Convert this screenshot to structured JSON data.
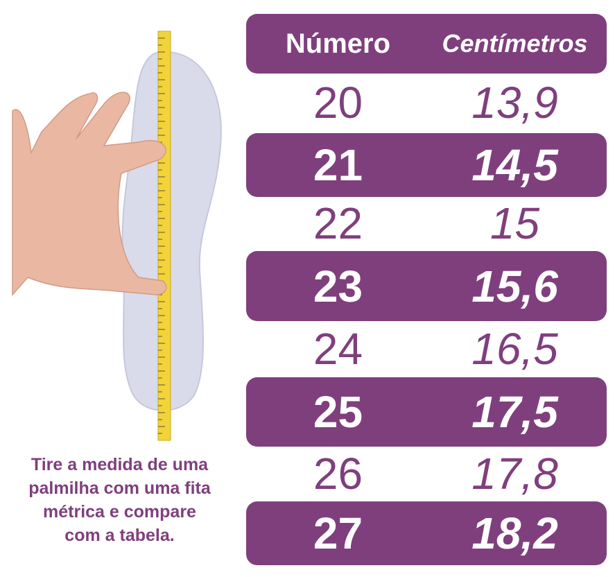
{
  "table": {
    "headers": [
      "Número",
      "Centímetros"
    ],
    "rows": [
      {
        "numero": "20",
        "cm": "13,9"
      },
      {
        "numero": "21",
        "cm": "14,5"
      },
      {
        "numero": "22",
        "cm": "15"
      },
      {
        "numero": "23",
        "cm": "15,6"
      },
      {
        "numero": "24",
        "cm": "16,5"
      },
      {
        "numero": "25",
        "cm": "17,5"
      },
      {
        "numero": "26",
        "cm": "17,8"
      },
      {
        "numero": "27",
        "cm": "18,2"
      }
    ]
  },
  "caption": {
    "lines": [
      "Tire a medida de uma",
      "palmilha com uma fita",
      "métrica e compare",
      "com a tabela."
    ]
  },
  "colors": {
    "accent": "#7f3f7d",
    "tape": "#f2d43a",
    "insole": "#d9dbea"
  }
}
